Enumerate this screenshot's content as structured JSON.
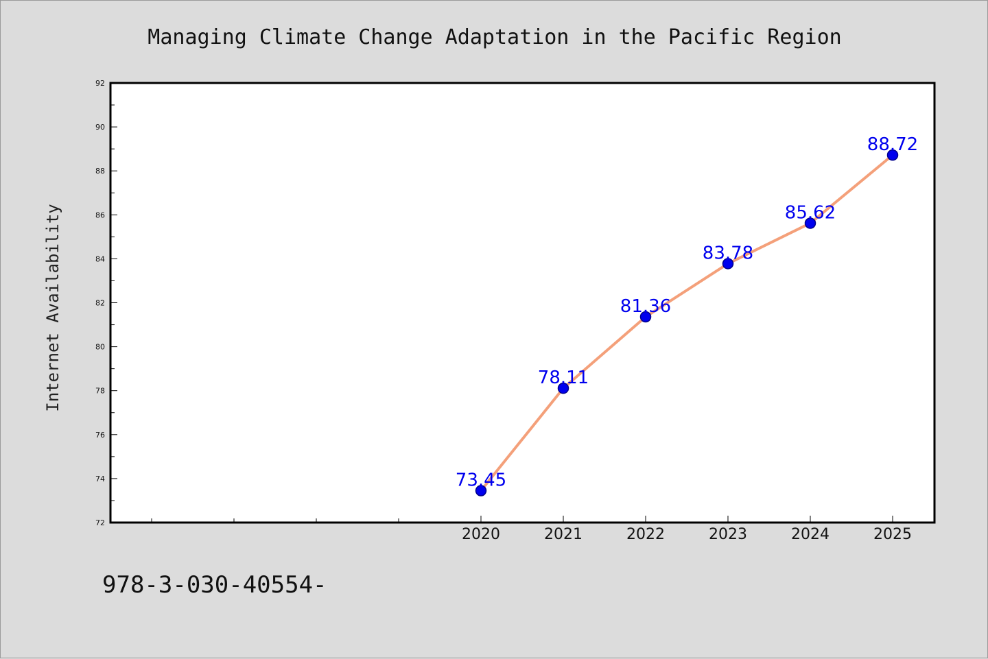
{
  "chart_data": {
    "type": "line",
    "title": "Managing Climate Change Adaptation in the Pacific Region",
    "xlabel": "",
    "ylabel": "Internet Availability",
    "x": [
      "2020",
      "2021",
      "2022",
      "2023",
      "2024",
      "2025"
    ],
    "series": [
      {
        "values": [
          73.45,
          78.11,
          81.36,
          83.78,
          85.62,
          88.72
        ]
      }
    ],
    "data_labels": [
      "73.45",
      "78.11",
      "81.36",
      "83.78",
      "85.62",
      "88.72"
    ],
    "ylim": [
      72,
      92
    ],
    "yticks": [
      "72",
      "74",
      "76",
      "78",
      "80",
      "82",
      "84",
      "86",
      "88",
      "90",
      "92"
    ],
    "grid": false,
    "legend": "none",
    "colors": {
      "line": "#f4a07a",
      "marker_fill": "#0000ee",
      "marker_edge": "#00008b",
      "data_label": "#0000ee",
      "background": "#dcdcdc",
      "plot_background": "#ffffff"
    }
  },
  "footer": {
    "code": "978-3-030-40554-"
  }
}
